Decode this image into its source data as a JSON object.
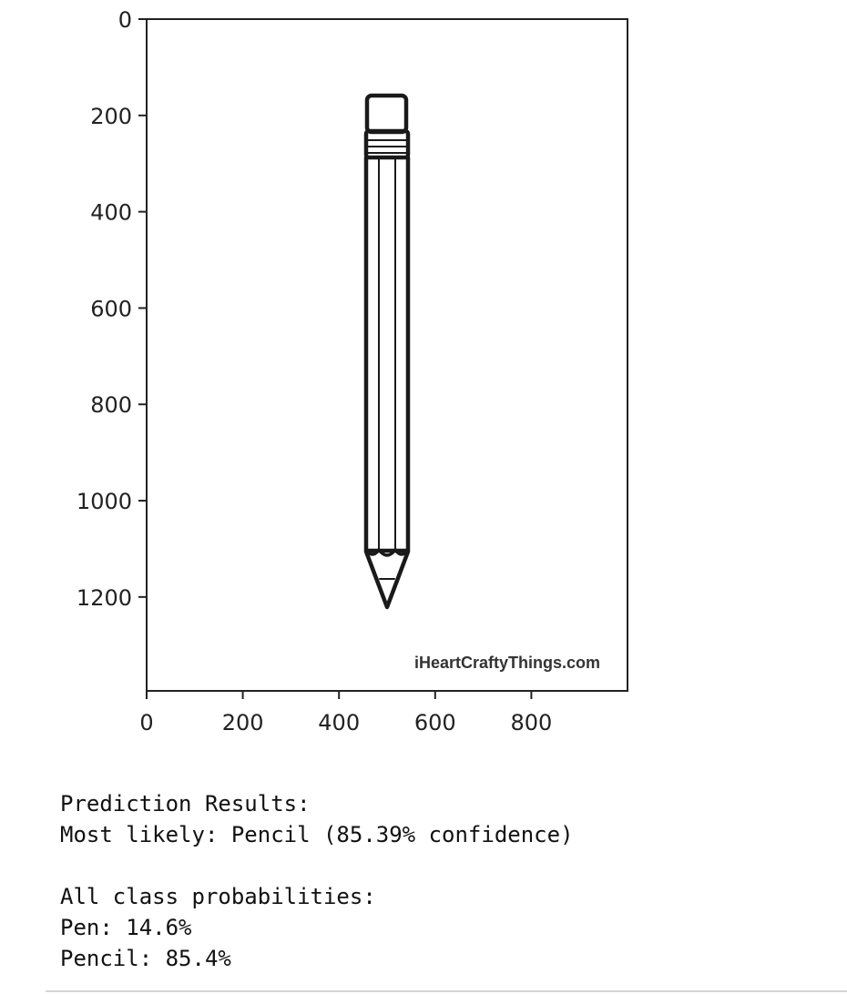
{
  "chart_data": {
    "type": "image",
    "x_ticks": [
      0,
      200,
      400,
      600,
      800
    ],
    "y_ticks": [
      0,
      200,
      400,
      600,
      800,
      1000,
      1200
    ],
    "xlim": [
      0,
      1000
    ],
    "ylim": [
      1395,
      0
    ],
    "y_inverted": true,
    "grid": false,
    "image_icon": "pencil-line-drawing",
    "watermark": "iHeartCraftyThings.com"
  },
  "output": {
    "header": "Prediction Results:",
    "most_likely": "Most likely: Pencil (85.39% confidence)",
    "probabilities_header": "All class probabilities:",
    "probabilities": [
      "Pen: 14.6%",
      "Pencil: 85.4%"
    ]
  }
}
